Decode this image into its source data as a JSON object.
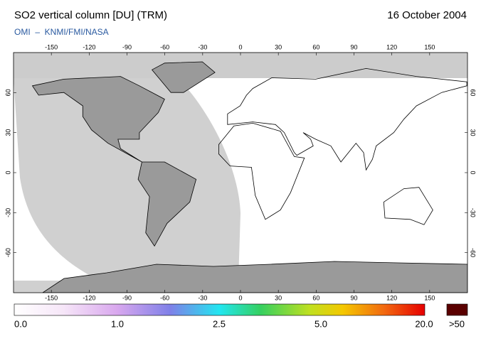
{
  "header": {
    "title": "SO2 vertical column [DU] (TRM)",
    "date": "16 October 2004",
    "credit": "OMI  –  KNMI/FMI/NASA"
  },
  "map": {
    "lon_range": [
      -180,
      180
    ],
    "lat_range": [
      -90,
      90
    ],
    "lon_ticks": [
      -150,
      -120,
      -90,
      -60,
      -30,
      0,
      30,
      60,
      90,
      120,
      150
    ],
    "lat_ticks": [
      60,
      30,
      0,
      -30,
      -60
    ]
  },
  "colorbar": {
    "labels": [
      "0.0",
      "1.0",
      "2.5",
      "5.0",
      "20.0",
      ">50"
    ]
  }
}
